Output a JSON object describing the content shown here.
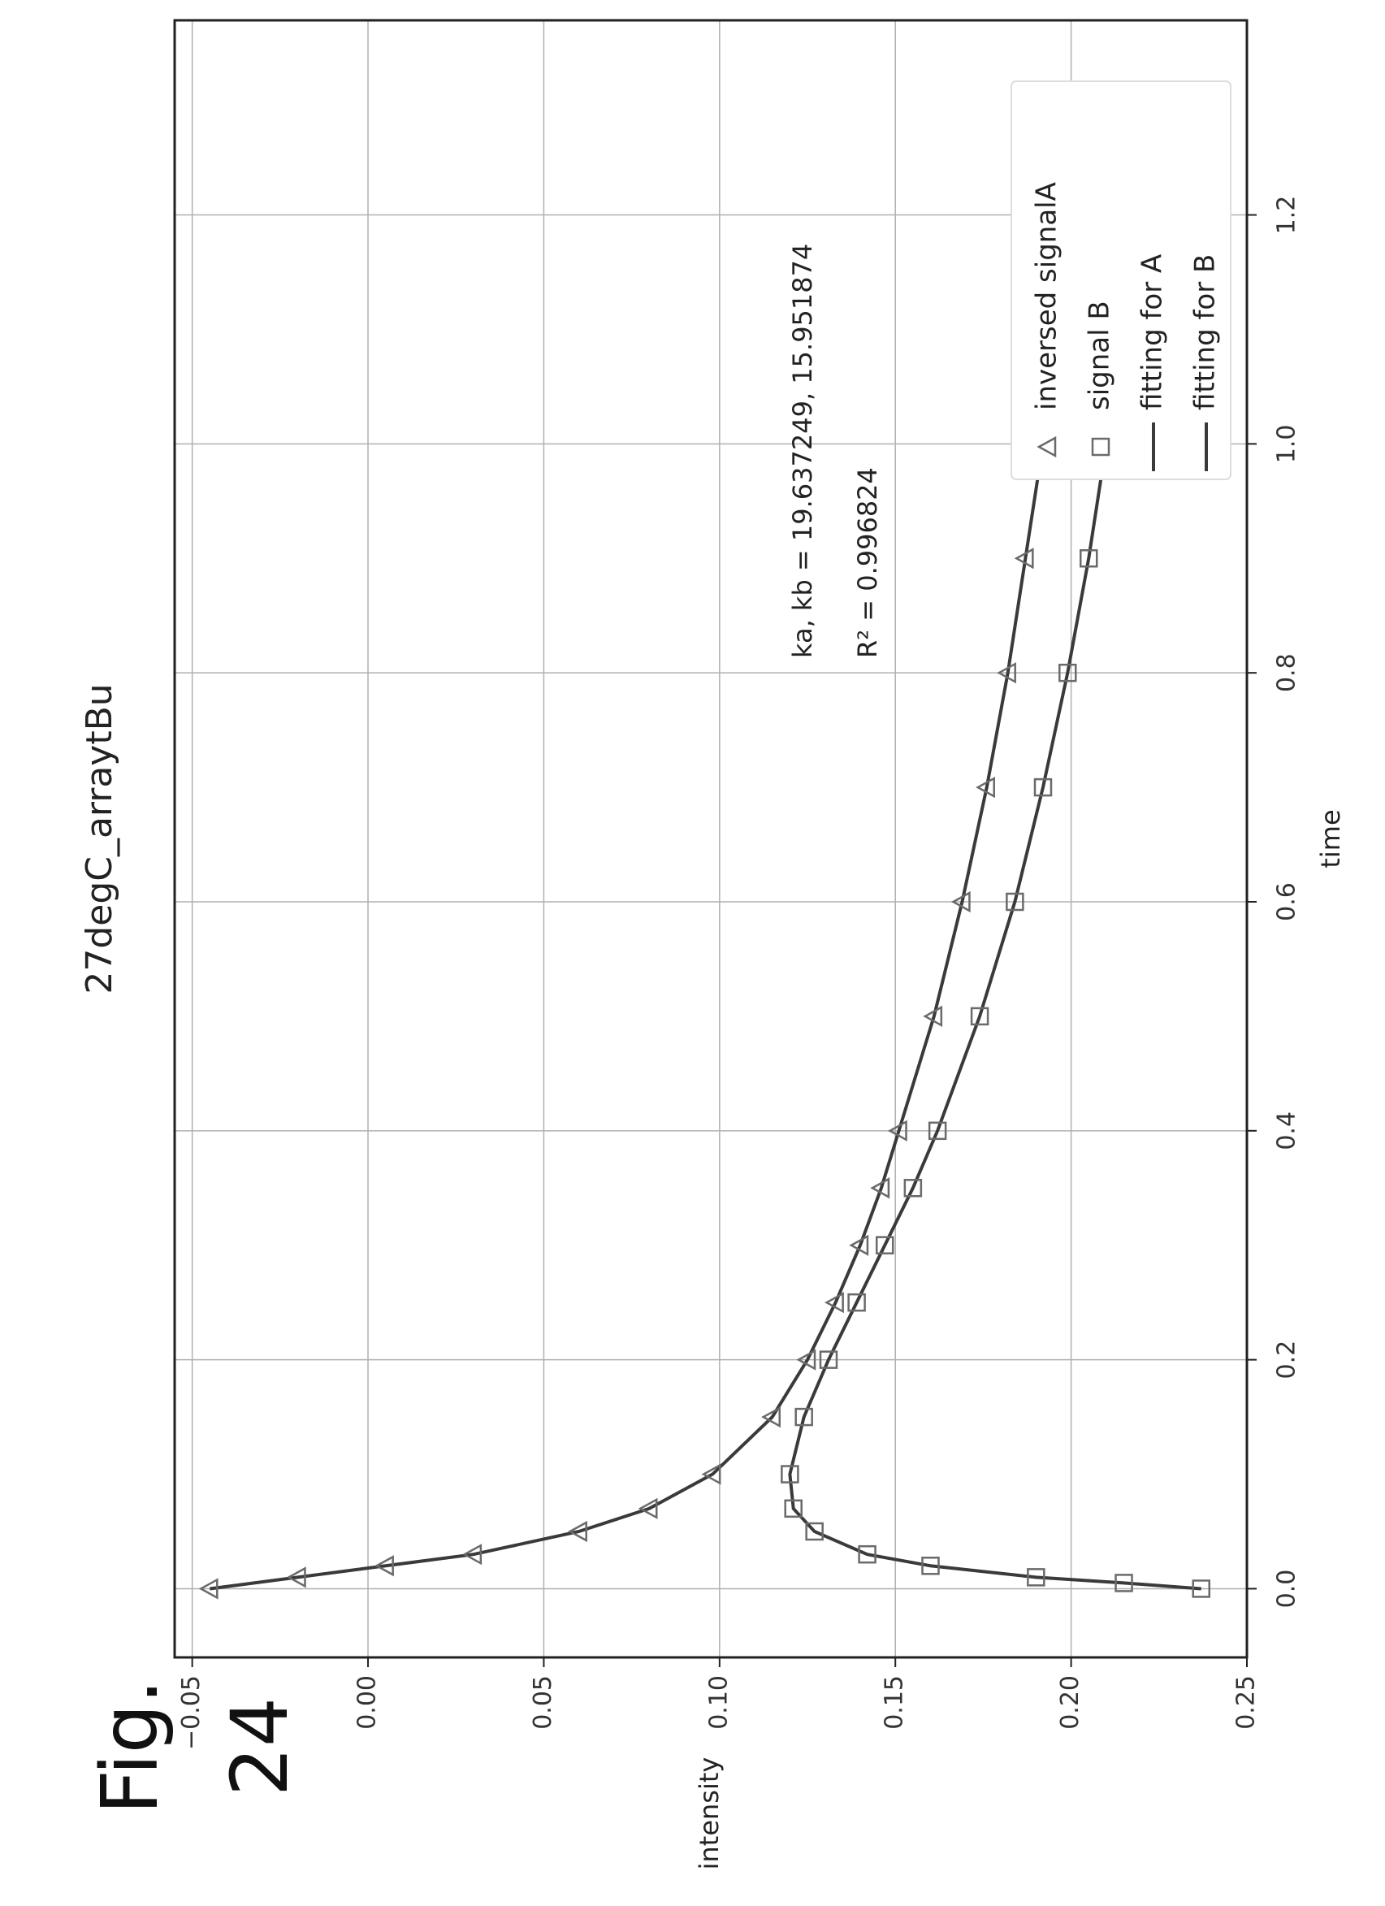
{
  "figure_label": "Fig. 24",
  "colors": {
    "marker": "#6a6a6a",
    "line": "#3a3a3a",
    "grid": "#b0b0b0",
    "frame": "#222222"
  },
  "chart_data": {
    "type": "scatter",
    "title": "27degC_arraytBu",
    "xlabel": "time",
    "ylabel": "intensity",
    "xlim": [
      -0.06,
      1.37
    ],
    "ylim": [
      -0.055,
      0.25
    ],
    "x_ticks": [
      {
        "value": 0.0,
        "label": "0.0"
      },
      {
        "value": 0.2,
        "label": "0.2"
      },
      {
        "value": 0.4,
        "label": "0.4"
      },
      {
        "value": 0.6,
        "label": "0.6"
      },
      {
        "value": 0.8,
        "label": "0.8"
      },
      {
        "value": 1.0,
        "label": "1.0"
      },
      {
        "value": 1.2,
        "label": "1.2"
      }
    ],
    "y_ticks": [
      {
        "value": 0.25,
        "label": "0.25"
      },
      {
        "value": 0.2,
        "label": "0.20"
      },
      {
        "value": 0.15,
        "label": "0.15"
      },
      {
        "value": 0.1,
        "label": "0.10"
      },
      {
        "value": 0.05,
        "label": "0.05"
      },
      {
        "value": 0.0,
        "label": "0.00"
      },
      {
        "value": -0.05,
        "label": "−0.05"
      }
    ],
    "grid": true,
    "legend_position": "top-right",
    "annotations": {
      "line1": "ka, kb = 19.637249, 15.951874",
      "line2": "R² = 0.996824"
    },
    "series": [
      {
        "name": "inversed signalA",
        "marker": "triangle",
        "x": [
          0.0,
          0.01,
          0.02,
          0.03,
          0.05,
          0.07,
          0.1,
          0.15,
          0.2,
          0.25,
          0.3,
          0.35,
          0.4,
          0.5,
          0.6,
          0.7,
          0.8,
          0.9,
          1.0,
          1.1,
          1.2,
          1.3
        ],
        "y": [
          -0.045,
          -0.02,
          0.005,
          0.03,
          0.06,
          0.08,
          0.098,
          0.115,
          0.125,
          0.133,
          0.14,
          0.146,
          0.151,
          0.161,
          0.169,
          0.176,
          0.182,
          0.187,
          0.192,
          0.196,
          0.199,
          0.202
        ]
      },
      {
        "name": "signal B",
        "marker": "square",
        "x": [
          0.0,
          0.005,
          0.01,
          0.02,
          0.03,
          0.05,
          0.07,
          0.1,
          0.15,
          0.2,
          0.25,
          0.3,
          0.35,
          0.4,
          0.5,
          0.6,
          0.7,
          0.8,
          0.9,
          1.0,
          1.1,
          1.2,
          1.3
        ],
        "y": [
          0.237,
          0.215,
          0.19,
          0.16,
          0.142,
          0.127,
          0.121,
          0.12,
          0.124,
          0.131,
          0.139,
          0.147,
          0.155,
          0.162,
          0.174,
          0.184,
          0.192,
          0.199,
          0.205,
          0.21,
          0.214,
          0.217,
          0.22
        ]
      },
      {
        "name": "fitting for A",
        "marker": "line",
        "x": [
          0.0,
          0.01,
          0.02,
          0.03,
          0.05,
          0.07,
          0.1,
          0.15,
          0.2,
          0.25,
          0.3,
          0.35,
          0.4,
          0.5,
          0.6,
          0.7,
          0.8,
          0.9,
          1.0,
          1.1,
          1.2,
          1.3
        ],
        "y": [
          -0.045,
          -0.02,
          0.005,
          0.03,
          0.06,
          0.08,
          0.098,
          0.115,
          0.125,
          0.133,
          0.14,
          0.146,
          0.151,
          0.161,
          0.169,
          0.176,
          0.182,
          0.187,
          0.192,
          0.196,
          0.199,
          0.202
        ]
      },
      {
        "name": "fitting for B",
        "marker": "line",
        "x": [
          0.0,
          0.005,
          0.01,
          0.02,
          0.03,
          0.05,
          0.07,
          0.1,
          0.15,
          0.2,
          0.25,
          0.3,
          0.35,
          0.4,
          0.5,
          0.6,
          0.7,
          0.8,
          0.9,
          1.0,
          1.1,
          1.2,
          1.3
        ],
        "y": [
          0.237,
          0.215,
          0.19,
          0.16,
          0.142,
          0.127,
          0.121,
          0.12,
          0.124,
          0.131,
          0.139,
          0.147,
          0.155,
          0.162,
          0.174,
          0.184,
          0.192,
          0.199,
          0.205,
          0.21,
          0.214,
          0.217,
          0.22
        ]
      }
    ]
  }
}
